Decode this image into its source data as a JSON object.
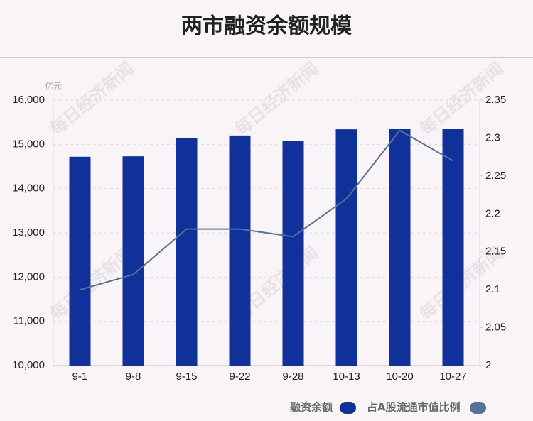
{
  "chart_data": {
    "type": "bar",
    "title": "两市融资余额规模",
    "y_unit": "亿元",
    "watermark": "每日经济新闻",
    "categories": [
      "9-1",
      "9-8",
      "9-15",
      "9-22",
      "9-28",
      "10-13",
      "10-20",
      "10-27"
    ],
    "series": [
      {
        "name": "融资余额",
        "type": "bar",
        "color": "#0f3199",
        "values": [
          14720,
          14730,
          15150,
          15200,
          15080,
          15340,
          15350,
          15350
        ]
      },
      {
        "name": "占A股流通市值比例",
        "type": "line",
        "axis": "y2",
        "color": "#5a6e9a",
        "values": [
          2.1,
          2.12,
          2.18,
          2.18,
          2.17,
          2.22,
          2.31,
          2.27
        ]
      }
    ],
    "ylim": [
      10000,
      16000
    ],
    "yticks": [
      {
        "value": 10000,
        "label": "10,000"
      },
      {
        "value": 11000,
        "label": "11,000"
      },
      {
        "value": 12000,
        "label": "12,000"
      },
      {
        "value": 13000,
        "label": "13,000"
      },
      {
        "value": 14000,
        "label": "14,000"
      },
      {
        "value": 15000,
        "label": "15,000"
      },
      {
        "value": 16000,
        "label": "16,000"
      }
    ],
    "y2lim": [
      2,
      2.35
    ],
    "y2ticks": [
      2,
      2.05,
      2.1,
      2.15,
      2.2,
      2.25,
      2.3,
      2.35
    ],
    "grid": true
  }
}
